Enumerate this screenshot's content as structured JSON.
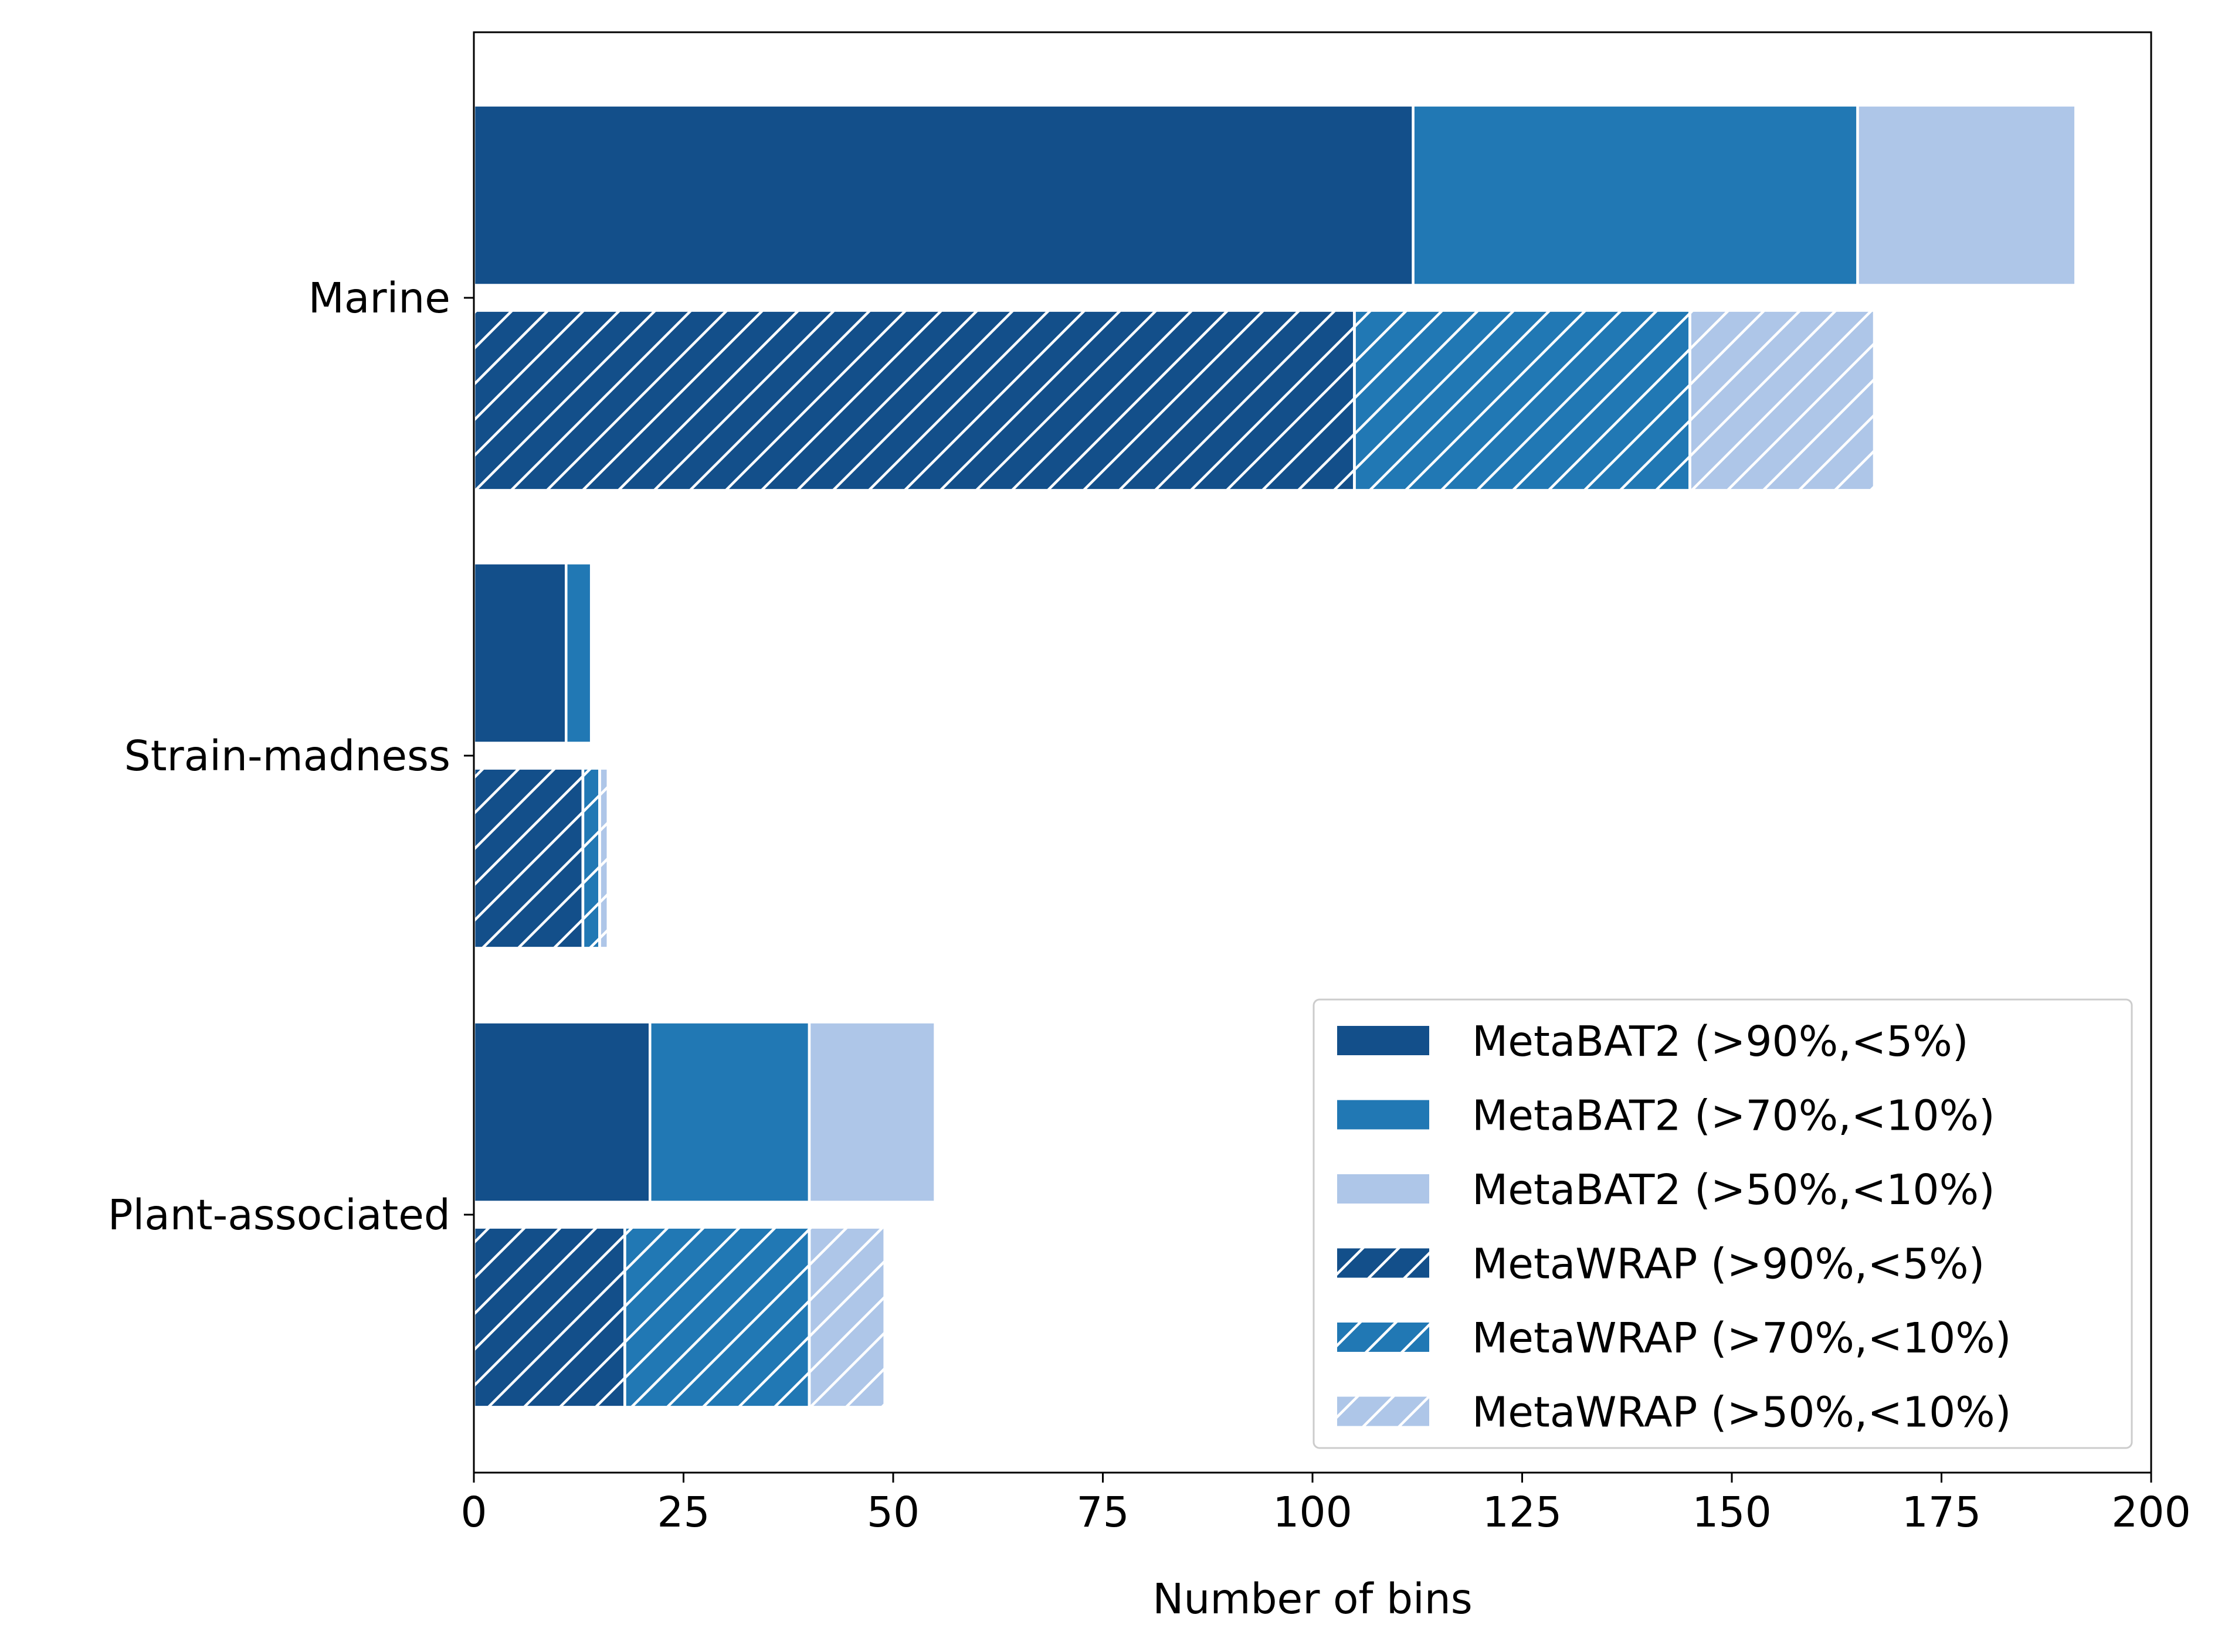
{
  "chart_data": {
    "type": "bar",
    "orientation": "horizontal",
    "stacked": true,
    "xlabel": "Number of bins",
    "ylabel": "",
    "title": "",
    "xlim": [
      0,
      200
    ],
    "xticks": [
      0,
      25,
      50,
      75,
      100,
      125,
      150,
      175,
      200
    ],
    "categories": [
      "Marine",
      "Strain-madness",
      "Plant-associated"
    ],
    "groups": [
      {
        "tool": "MetaBAT2",
        "hatch": false,
        "segments": [
          {
            "name": "MetaBAT2 (>90%,<5%)",
            "color": "#134f8a",
            "values": [
              112,
              11,
              21
            ]
          },
          {
            "name": "MetaBAT2 (>70%,<10%)",
            "color": "#2178b4",
            "values": [
              53,
              3,
              19
            ]
          },
          {
            "name": "MetaBAT2 (>50%,<10%)",
            "color": "#aec6e8",
            "values": [
              26,
              0,
              15
            ]
          }
        ]
      },
      {
        "tool": "MetaWRAP",
        "hatch": true,
        "segments": [
          {
            "name": "MetaWRAP (>90%,<5%)",
            "color": "#134f8a",
            "values": [
              105,
              13,
              18
            ]
          },
          {
            "name": "MetaWRAP (>70%,<10%)",
            "color": "#2178b4",
            "values": [
              40,
              2,
              22
            ]
          },
          {
            "name": "MetaWRAP (>50%,<10%)",
            "color": "#aec6e8",
            "values": [
              22,
              1,
              9
            ]
          }
        ]
      }
    ],
    "grid": false,
    "legend_position": "lower-right"
  }
}
